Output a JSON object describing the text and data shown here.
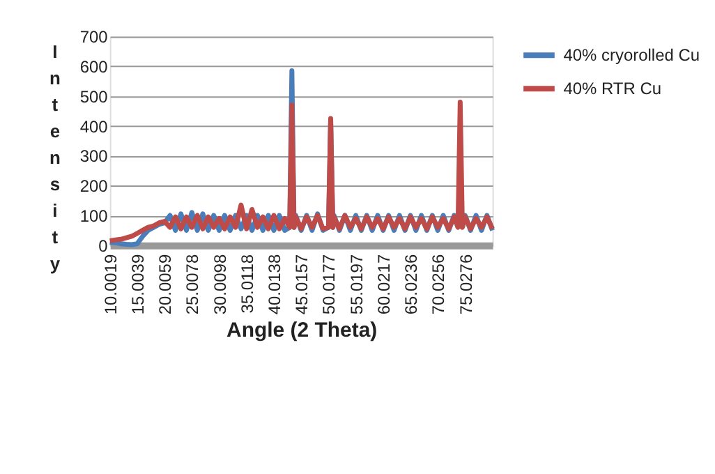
{
  "chart_data": {
    "type": "line",
    "xlabel": "Angle (2 Theta)",
    "ylabel": "Intensity",
    "xlim": [
      10,
      80
    ],
    "xticks": [
      10.0019,
      15.0039,
      20.0059,
      25.0078,
      30.0098,
      35.0118,
      40.0138,
      45.0157,
      50.0177,
      55.0197,
      60.0217,
      65.0236,
      70.0256,
      75.0276
    ],
    "ylim": [
      0,
      700
    ],
    "yticks": [
      0,
      100,
      200,
      300,
      400,
      500,
      600,
      700
    ],
    "grid": "y",
    "legend": "right",
    "line_style": "solid",
    "marker": "none",
    "series": [
      {
        "name": "40% cryorolled Cu",
        "color": "#4a7ebb",
        "x": [
          10,
          11,
          12,
          13,
          14,
          15,
          16,
          17,
          18,
          19,
          20,
          21,
          22,
          23,
          24,
          25,
          26,
          27,
          28,
          29,
          30,
          31,
          32,
          33,
          34,
          35,
          36,
          37,
          38,
          39,
          40,
          41,
          42,
          42.9,
          43.3,
          43.7,
          44,
          45,
          46,
          47,
          48,
          49,
          50.0,
          50.4,
          50.8,
          51,
          52,
          53,
          54,
          55,
          56,
          57,
          58,
          59,
          60,
          61,
          62,
          63,
          64,
          65,
          66,
          67,
          68,
          69,
          70,
          71,
          72,
          73,
          73.7,
          74.1,
          74.5,
          75,
          76,
          77,
          78,
          79,
          80
        ],
        "values": [
          10,
          8,
          5,
          3,
          2,
          5,
          30,
          50,
          60,
          70,
          75,
          100,
          50,
          105,
          50,
          110,
          50,
          105,
          50,
          100,
          50,
          100,
          50,
          100,
          55,
          100,
          50,
          100,
          50,
          100,
          50,
          100,
          50,
          60,
          585,
          60,
          100,
          50,
          100,
          50,
          105,
          50,
          60,
          420,
          60,
          100,
          50,
          100,
          50,
          100,
          50,
          100,
          50,
          100,
          50,
          100,
          50,
          100,
          50,
          100,
          50,
          100,
          50,
          100,
          50,
          100,
          50,
          100,
          60,
          null,
          60,
          100,
          50,
          100,
          50,
          100,
          50
        ]
      },
      {
        "name": "40% RTR Cu",
        "color": "#be4b48",
        "x": [
          10,
          11,
          12,
          13,
          14,
          15,
          16,
          17,
          18,
          19,
          20,
          21,
          22,
          23,
          24,
          25,
          26,
          27,
          28,
          29,
          30,
          31,
          32,
          33,
          34,
          35,
          36,
          37,
          38,
          39,
          40,
          41,
          42,
          42.9,
          43.3,
          43.7,
          44,
          45,
          46,
          47,
          48,
          49,
          50.0,
          50.4,
          50.8,
          51,
          52,
          53,
          54,
          55,
          56,
          57,
          58,
          59,
          60,
          61,
          62,
          63,
          64,
          65,
          66,
          67,
          68,
          69,
          70,
          71,
          72,
          73,
          73.7,
          74.1,
          74.5,
          75,
          76,
          77,
          78,
          79,
          80
        ],
        "values": [
          15,
          18,
          20,
          25,
          30,
          40,
          50,
          60,
          65,
          75,
          80,
          60,
          95,
          55,
          95,
          60,
          100,
          55,
          95,
          60,
          90,
          55,
          95,
          60,
          135,
          55,
          120,
          60,
          95,
          55,
          100,
          55,
          90,
          60,
          470,
          60,
          95,
          55,
          95,
          60,
          100,
          55,
          60,
          425,
          60,
          95,
          55,
          100,
          60,
          90,
          55,
          95,
          60,
          90,
          55,
          95,
          60,
          90,
          55,
          95,
          60,
          90,
          55,
          95,
          60,
          90,
          55,
          95,
          60,
          480,
          60,
          95,
          55,
          90,
          60,
          95,
          55
        ]
      }
    ]
  }
}
